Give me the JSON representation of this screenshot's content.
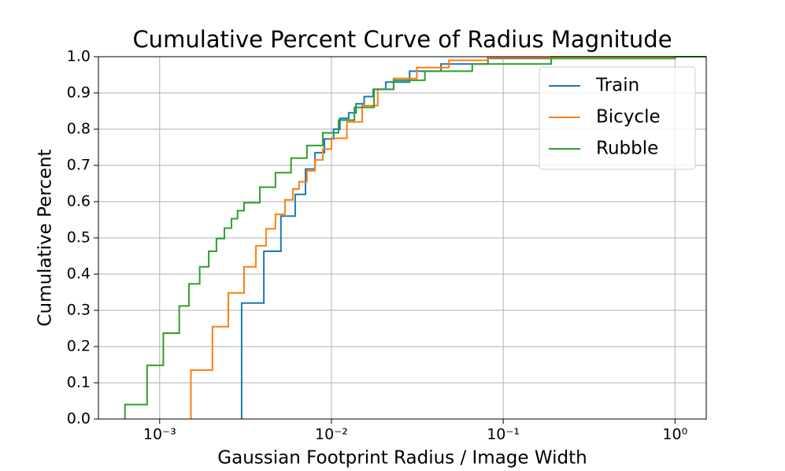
{
  "chart_data": {
    "type": "step",
    "title": "Cumulative Percent Curve of Radius Magnitude",
    "x_label": "Gaussian Footprint Radius / Image Width",
    "y_label": "Cumulative Percent",
    "log_x": true,
    "grid": true,
    "legend": "upper right",
    "xlim": [
      0.00044,
      1.52
    ],
    "ylim": [
      0,
      1
    ],
    "xticks": [
      {
        "value": 0.001,
        "label": "10⁻³"
      },
      {
        "value": 0.01,
        "label": "10⁻²"
      },
      {
        "value": 0.1,
        "label": "10⁻¹"
      },
      {
        "value": 1,
        "label": "10⁰"
      }
    ],
    "yticks": [
      {
        "value": 0,
        "label": "0.0"
      },
      {
        "value": 0.1,
        "label": "0.1"
      },
      {
        "value": 0.2,
        "label": "0.2"
      },
      {
        "value": 0.3,
        "label": "0.3"
      },
      {
        "value": 0.4,
        "label": "0.4"
      },
      {
        "value": 0.5,
        "label": "0.5"
      },
      {
        "value": 0.6,
        "label": "0.6"
      },
      {
        "value": 0.7,
        "label": "0.7"
      },
      {
        "value": 0.8,
        "label": "0.8"
      },
      {
        "value": 0.9,
        "label": "0.9"
      },
      {
        "value": 1,
        "label": "1.0"
      }
    ],
    "series": [
      {
        "name": "Train",
        "color": "#1f77b4",
        "x": [
          0.003,
          0.00404,
          0.00508,
          0.00615,
          0.00706,
          0.00802,
          0.0091,
          0.0103,
          0.0112,
          0.0126,
          0.0139,
          0.0155,
          0.0175,
          0.0207,
          0.0285,
          0.0434,
          0.0815,
          0.19,
          1.0
        ],
        "values": [
          0.32,
          0.463,
          0.56,
          0.62,
          0.69,
          0.735,
          0.773,
          0.8,
          0.83,
          0.845,
          0.87,
          0.89,
          0.91,
          0.93,
          0.96,
          0.98,
          0.995,
          1.0,
          1.0
        ]
      },
      {
        "name": "Bicycle",
        "color": "#ff7f0e",
        "x": [
          0.00152,
          0.00203,
          0.00251,
          0.0031,
          0.00363,
          0.00416,
          0.00472,
          0.00536,
          0.00596,
          0.00648,
          0.0072,
          0.008,
          0.0089,
          0.01,
          0.0123,
          0.0151,
          0.0186,
          0.023,
          0.0314,
          0.0483,
          0.081,
          0.19,
          1.0
        ],
        "values": [
          0.135,
          0.255,
          0.348,
          0.42,
          0.478,
          0.525,
          0.565,
          0.605,
          0.635,
          0.655,
          0.685,
          0.715,
          0.745,
          0.775,
          0.82,
          0.865,
          0.91,
          0.94,
          0.97,
          0.99,
          0.997,
          1.0,
          1.0
        ]
      },
      {
        "name": "Rubble",
        "color": "#2ca02c",
        "x": [
          0.000628,
          0.000845,
          0.00105,
          0.0013,
          0.00148,
          0.00171,
          0.00193,
          0.00214,
          0.00238,
          0.00262,
          0.00284,
          0.0031,
          0.00383,
          0.00472,
          0.00582,
          0.0072,
          0.0089,
          0.011,
          0.0136,
          0.0177,
          0.023,
          0.035,
          0.066,
          0.19,
          1.0
        ],
        "values": [
          0.04,
          0.148,
          0.237,
          0.312,
          0.373,
          0.42,
          0.463,
          0.498,
          0.527,
          0.553,
          0.575,
          0.597,
          0.64,
          0.68,
          0.72,
          0.755,
          0.79,
          0.825,
          0.86,
          0.91,
          0.935,
          0.96,
          0.98,
          0.995,
          1.0
        ]
      }
    ]
  }
}
